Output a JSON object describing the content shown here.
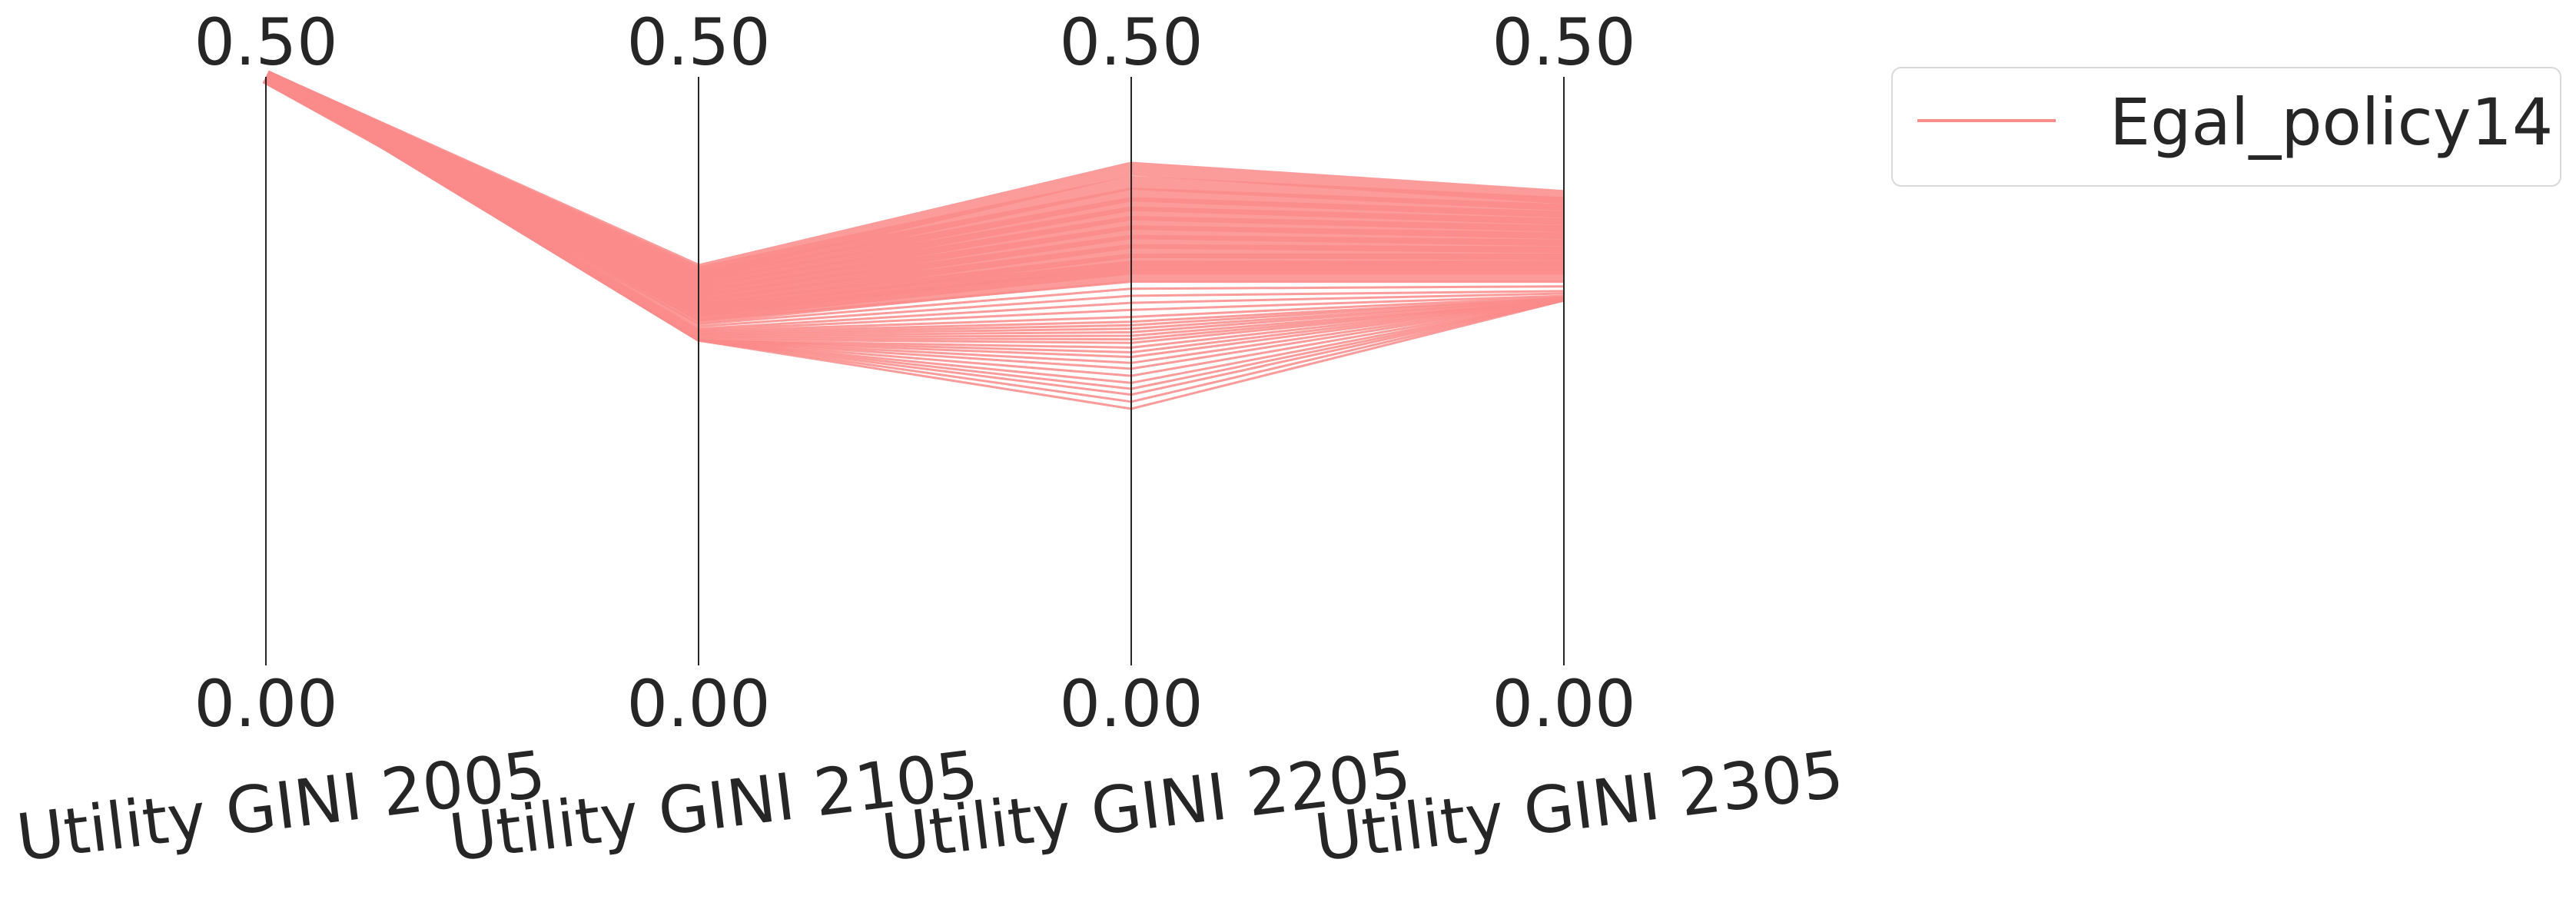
{
  "chart_data": {
    "type": "parallel_coordinates",
    "axes": [
      {
        "label": "Utility GINI 2005",
        "min": 0.0,
        "max": 0.5,
        "min_label": "0.00",
        "max_label": "0.50"
      },
      {
        "label": "Utility GINI 2105",
        "min": 0.0,
        "max": 0.5,
        "min_label": "0.00",
        "max_label": "0.50"
      },
      {
        "label": "Utility GINI 2205",
        "min": 0.0,
        "max": 0.5,
        "min_label": "0.00",
        "max_label": "0.50"
      },
      {
        "label": "Utility GINI 2305",
        "min": 0.0,
        "max": 0.5,
        "min_label": "0.00",
        "max_label": "0.50"
      }
    ],
    "series": [
      {
        "name": "Egal_policy14",
        "color": "#fa8b8a",
        "lines": [
          [
            0.5,
            0.335,
            0.422,
            0.398
          ],
          [
            0.5,
            0.333,
            0.41,
            0.392
          ],
          [
            0.5,
            0.33,
            0.4,
            0.386
          ],
          [
            0.5,
            0.326,
            0.392,
            0.38
          ],
          [
            0.5,
            0.322,
            0.384,
            0.374
          ],
          [
            0.5,
            0.318,
            0.376,
            0.368
          ],
          [
            0.5,
            0.314,
            0.368,
            0.362
          ],
          [
            0.5,
            0.31,
            0.36,
            0.356
          ],
          [
            0.5,
            0.306,
            0.352,
            0.35
          ],
          [
            0.5,
            0.302,
            0.344,
            0.344
          ],
          [
            0.5,
            0.299,
            0.338,
            0.338
          ],
          [
            0.5,
            0.296,
            0.332,
            0.332
          ],
          [
            0.5,
            0.293,
            0.326,
            0.326
          ],
          [
            0.5,
            0.29,
            0.32,
            0.322
          ],
          [
            0.5,
            0.288,
            0.314,
            0.318
          ],
          [
            0.5,
            0.286,
            0.308,
            0.316
          ],
          [
            0.5,
            0.285,
            0.302,
            0.314
          ],
          [
            0.5,
            0.284,
            0.296,
            0.313
          ],
          [
            0.5,
            0.283,
            0.292,
            0.312
          ],
          [
            0.5,
            0.282,
            0.289,
            0.312
          ],
          [
            0.5,
            0.281,
            0.286,
            0.311
          ],
          [
            0.5,
            0.28,
            0.283,
            0.311
          ],
          [
            0.5,
            0.279,
            0.28,
            0.31
          ],
          [
            0.5,
            0.278,
            0.277,
            0.31
          ],
          [
            0.5,
            0.277,
            0.274,
            0.31
          ],
          [
            0.5,
            0.276,
            0.27,
            0.31
          ],
          [
            0.5,
            0.276,
            0.266,
            0.31
          ],
          [
            0.5,
            0.276,
            0.262,
            0.31
          ],
          [
            0.5,
            0.276,
            0.257,
            0.31
          ],
          [
            0.5,
            0.276,
            0.252,
            0.31
          ],
          [
            0.5,
            0.276,
            0.246,
            0.31
          ],
          [
            0.5,
            0.276,
            0.24,
            0.31
          ],
          [
            0.5,
            0.276,
            0.235,
            0.31
          ],
          [
            0.5,
            0.276,
            0.23,
            0.31
          ],
          [
            0.5,
            0.276,
            0.224,
            0.31
          ],
          [
            0.5,
            0.276,
            0.218,
            0.31
          ]
        ]
      }
    ],
    "legend": {
      "position": "top-right outside",
      "entries": [
        "Egal_policy14"
      ]
    },
    "grid": false
  }
}
